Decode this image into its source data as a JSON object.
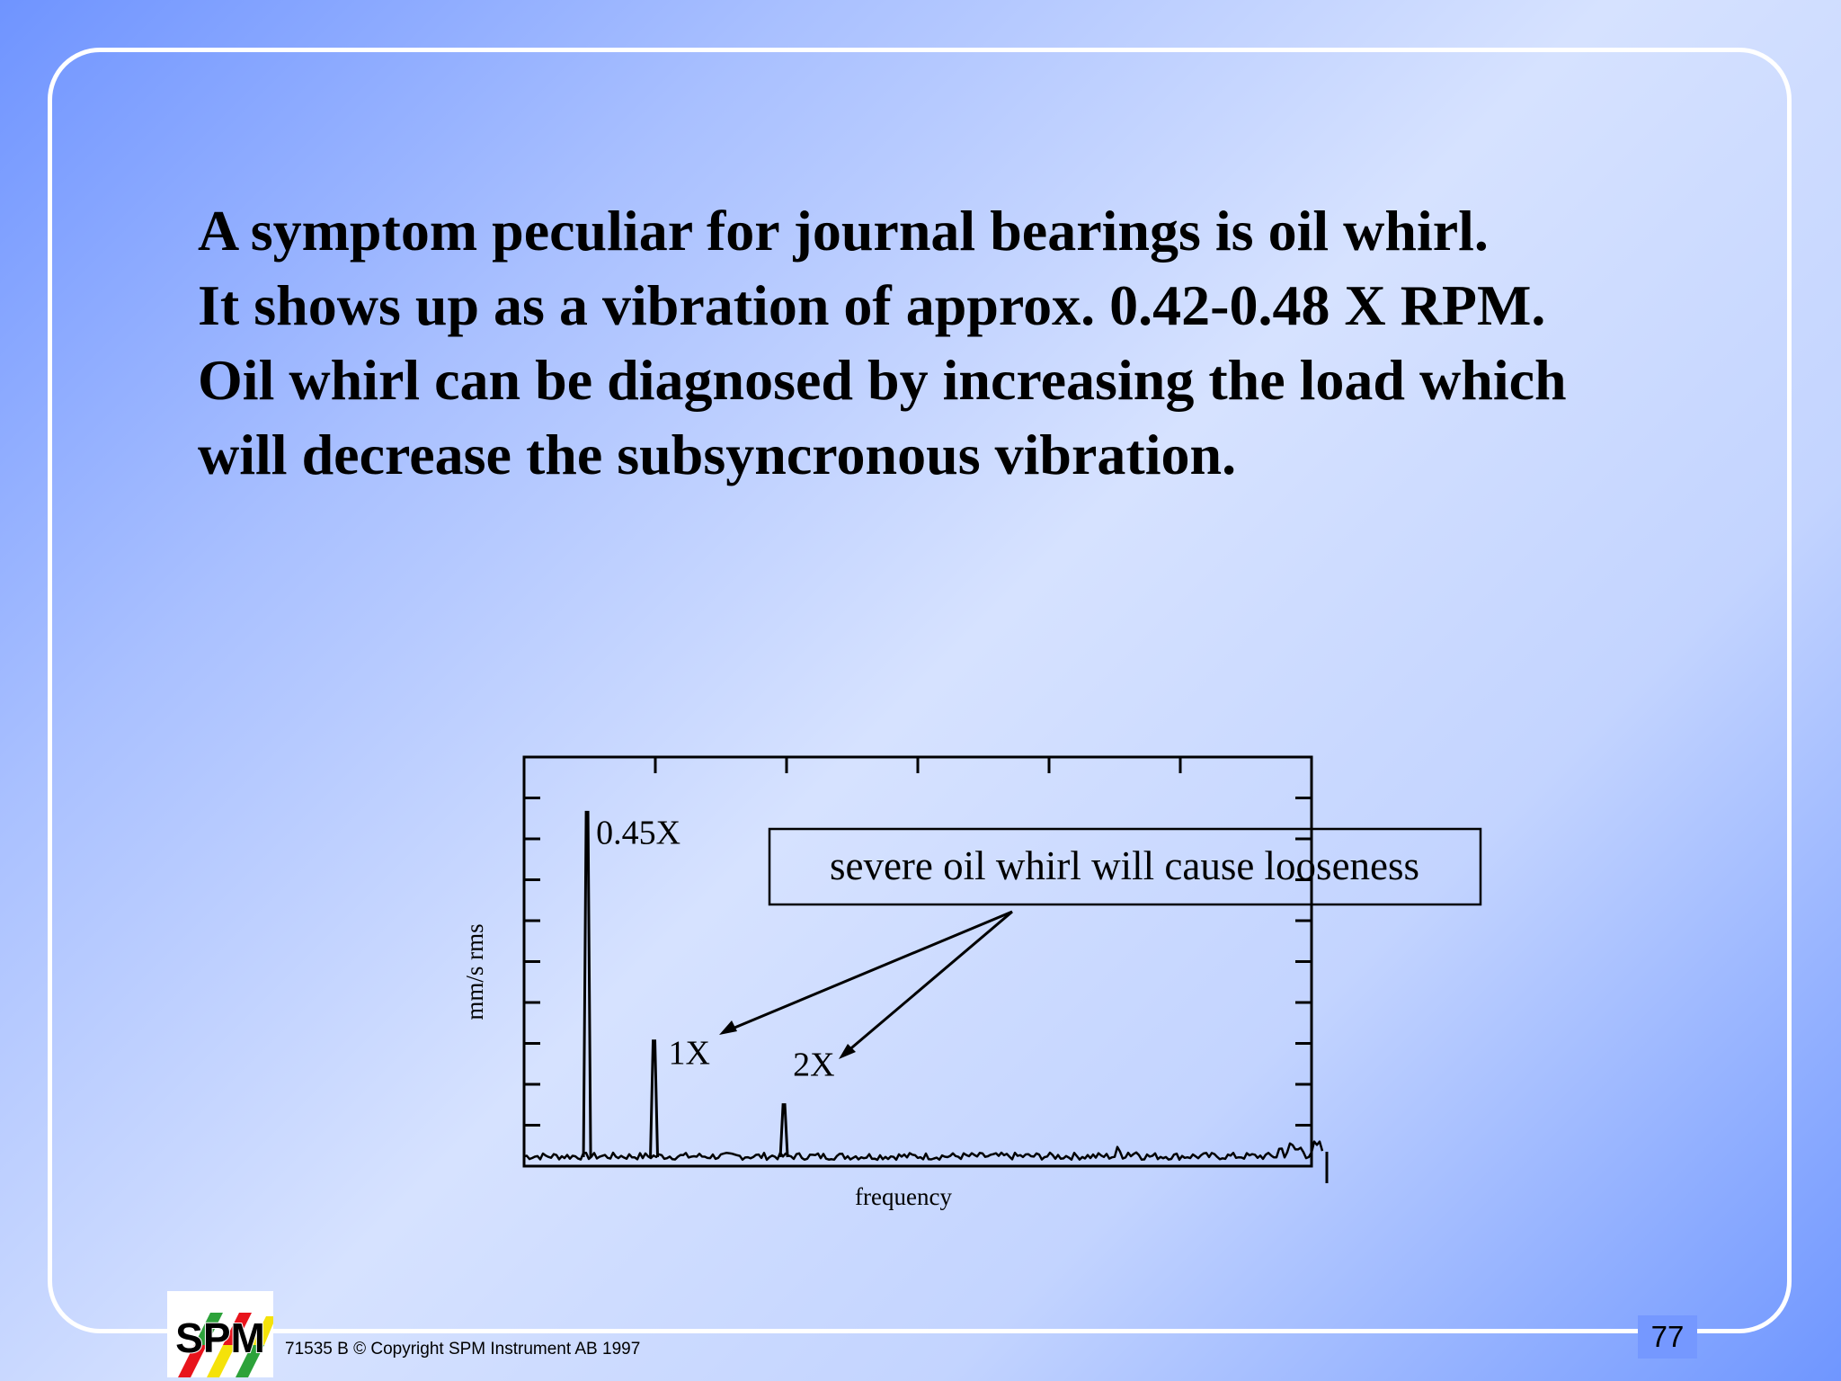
{
  "slide": {
    "lines": [
      "A symptom peculiar for journal bearings is oil whirl.",
      "It shows up as a vibration of approx. 0.42-0.48 X RPM.",
      "Oil whirl can be diagnosed by increasing the load which",
      "will decrease the subsyncronous vibration."
    ],
    "footer": "71535 B  © Copyright SPM Instrument AB 1997",
    "page_number": "77",
    "logo_text": "SPM"
  },
  "chart_data": {
    "type": "line",
    "title": "",
    "xlabel": "frequency",
    "ylabel": "mm/s rms",
    "xlim": [
      0,
      1
    ],
    "ylim": [
      0,
      1
    ],
    "peaks": [
      {
        "label": "0.45X",
        "x": 0.08,
        "y": 0.92
      },
      {
        "label": "1X",
        "x": 0.165,
        "y": 0.31
      },
      {
        "label": "2X",
        "x": 0.33,
        "y": 0.14
      }
    ],
    "annotation": "severe oil whirl will cause looseness",
    "grid": false,
    "colors": {
      "line": "#000000"
    }
  }
}
